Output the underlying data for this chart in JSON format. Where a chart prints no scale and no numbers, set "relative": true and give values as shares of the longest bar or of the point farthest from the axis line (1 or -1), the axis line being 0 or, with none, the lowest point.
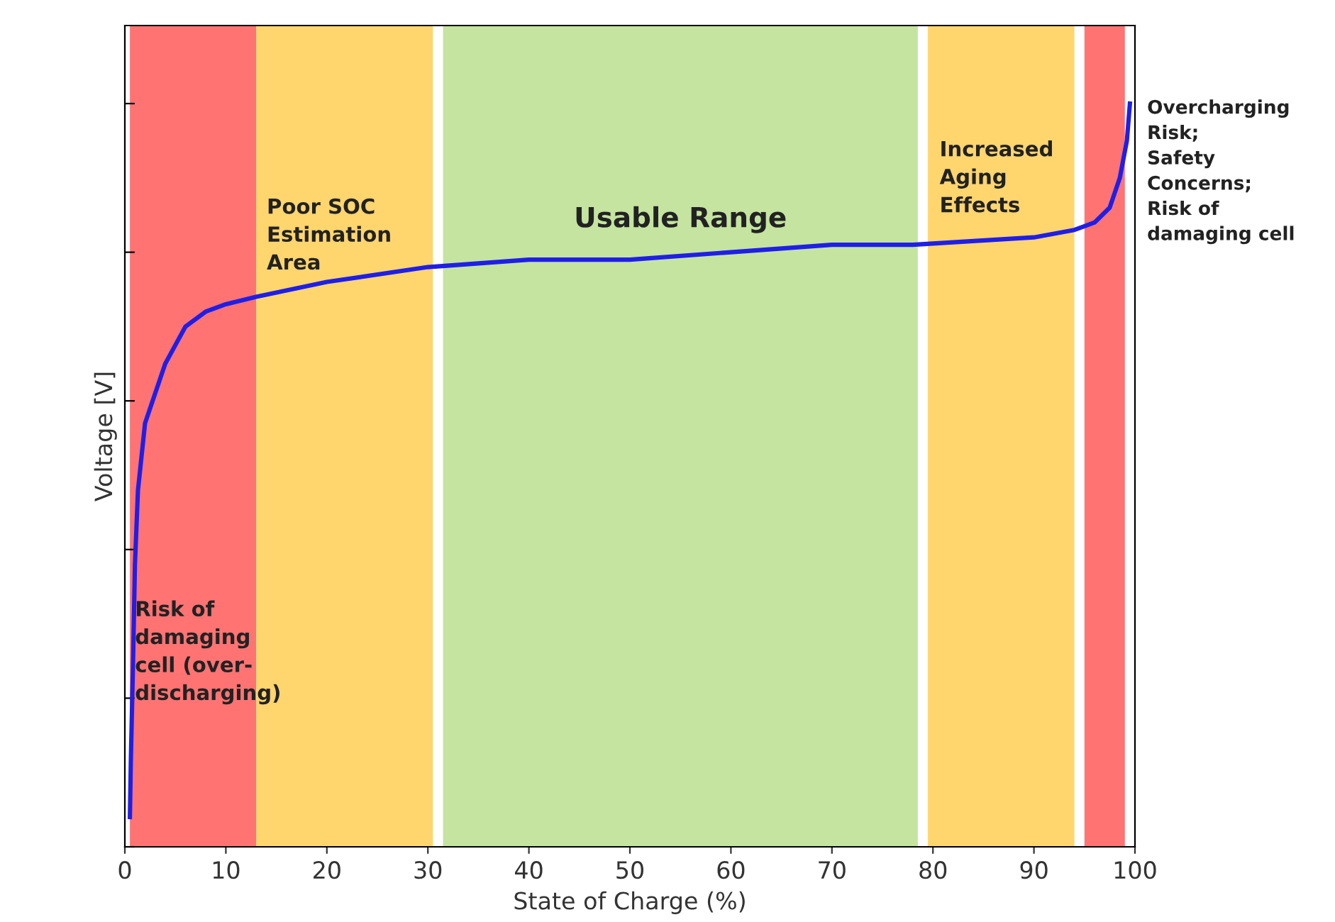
{
  "chart_data": {
    "type": "line",
    "relative": true,
    "xlabel": "State of Charge (%)",
    "ylabel": "Voltage [V]",
    "xlim": [
      0,
      100
    ],
    "xticks": [
      0,
      10,
      20,
      30,
      40,
      50,
      60,
      70,
      80,
      90,
      100
    ],
    "grid": false,
    "marker": "none",
    "line_style": "solid",
    "series": [
      {
        "color": "#1f1fe6",
        "x": [
          0.5,
          0.6,
          0.8,
          1.0,
          1.3,
          2,
          3,
          4,
          6,
          8,
          10,
          13,
          20,
          30,
          40,
          50,
          60,
          70,
          78,
          90,
          94,
          96,
          97.5,
          98.5,
          99.2,
          99.5
        ],
        "values": [
          0.04,
          0.12,
          0.24,
          0.38,
          0.48,
          0.57,
          0.61,
          0.65,
          0.7,
          0.72,
          0.73,
          0.74,
          0.76,
          0.78,
          0.79,
          0.79,
          0.8,
          0.81,
          0.81,
          0.82,
          0.83,
          0.84,
          0.86,
          0.9,
          0.95,
          1.0
        ]
      }
    ],
    "bands": [
      {
        "axis": "x",
        "from": 0.5,
        "to": 13,
        "color": "#ff7373",
        "label": "Risk of\ndamaging\ncell (over-\ndischarging)"
      },
      {
        "axis": "x",
        "from": 13,
        "to": 30.5,
        "color": "#ffd56e",
        "label": "Poor SOC\nEstimation\nArea"
      },
      {
        "axis": "x",
        "from": 31.5,
        "to": 78.5,
        "color": "#c4e4a0",
        "label": "Usable Range"
      },
      {
        "axis": "x",
        "from": 79.5,
        "to": 94,
        "color": "#ffd56e",
        "label": "Increased\nAging\nEffects"
      },
      {
        "axis": "x",
        "from": 95,
        "to": 99,
        "color": "#ff7373",
        "label": "Overcharging\nRisk;\nSafety\nConcerns;\nRisk of\ndamaging cell"
      }
    ]
  }
}
